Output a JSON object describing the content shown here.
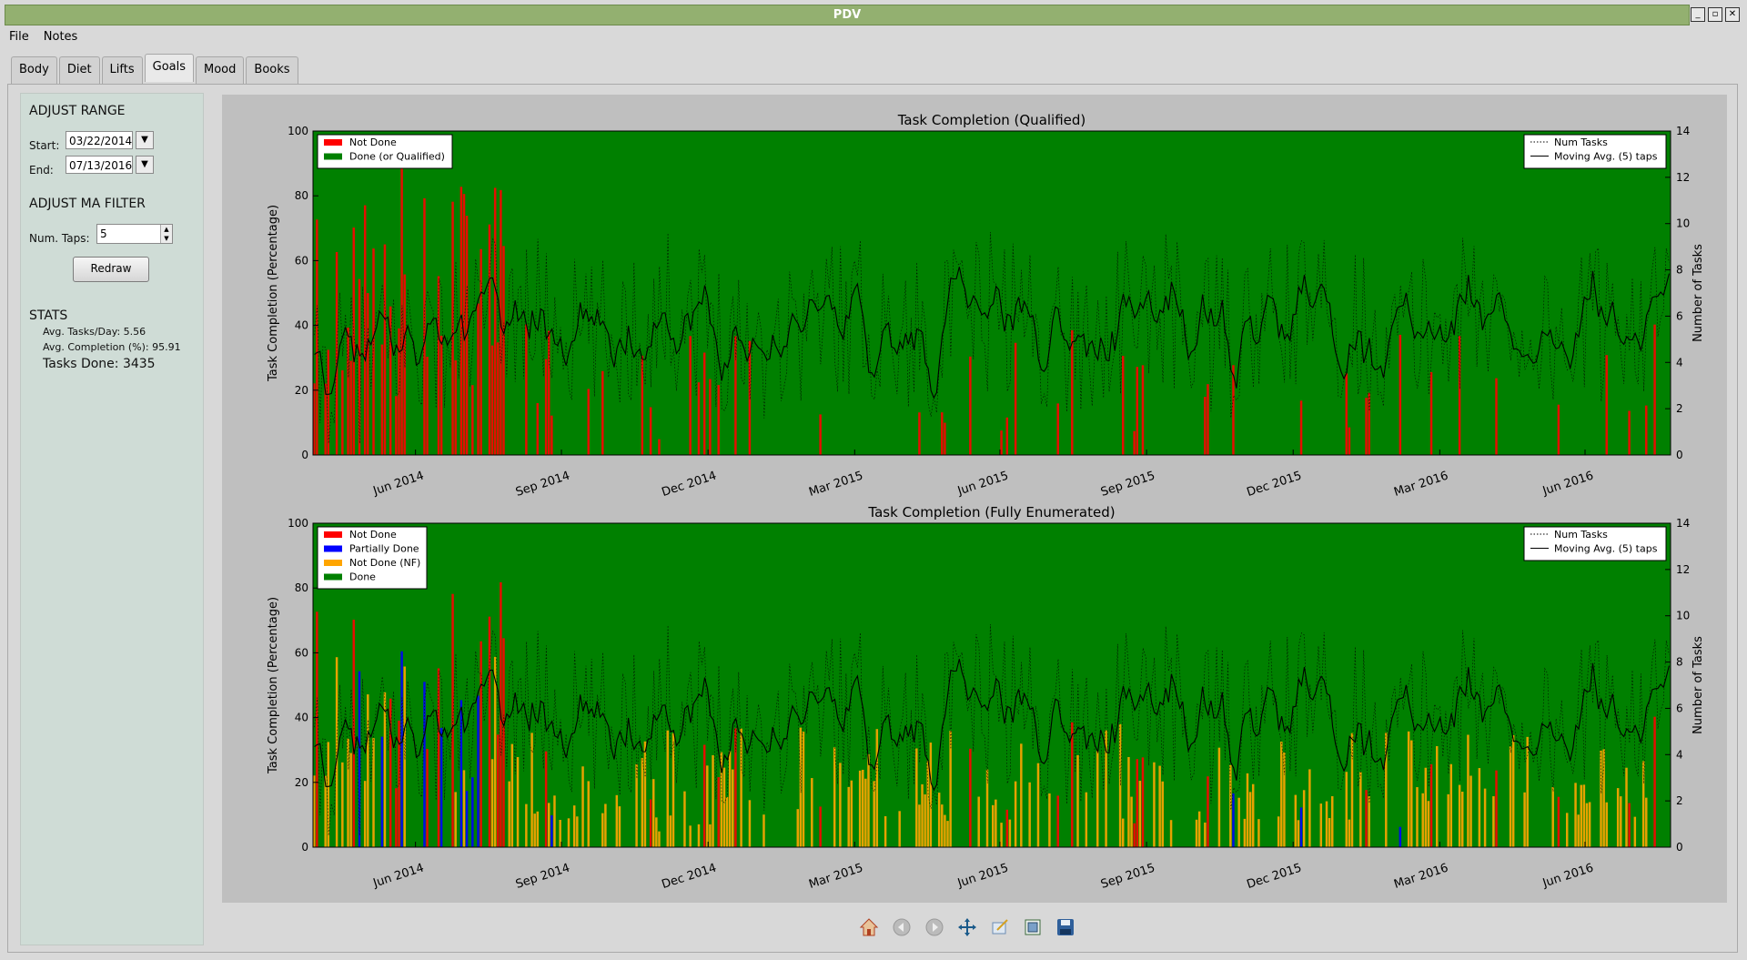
{
  "window": {
    "title": "PDV"
  },
  "menu": [
    "File",
    "Notes"
  ],
  "tabs": [
    "Body",
    "Diet",
    "Lifts",
    "Goals",
    "Mood",
    "Books"
  ],
  "active_tab": "Goals",
  "sidebar": {
    "range_heading": "ADJUST RANGE",
    "start_label": "Start:",
    "start_value": "03/22/2014",
    "end_label": "End:",
    "end_value": "07/13/2016",
    "ma_heading": "ADJUST MA FILTER",
    "taps_label": "Num. Taps:",
    "taps_value": "5",
    "redraw_label": "Redraw",
    "stats_heading": "STATS",
    "avg_tasks": "Avg. Tasks/Day: 5.56",
    "avg_completion": "Avg. Completion (%): 95.91",
    "tasks_done": "Tasks Done: 3435"
  },
  "toolbar_icons": [
    "home-icon",
    "back-icon",
    "forward-icon",
    "pan-icon",
    "zoom-icon",
    "subplots-icon",
    "save-icon"
  ],
  "chart_data": [
    {
      "type": "bar",
      "title": "Task Completion (Qualified)",
      "ylabel": "Task Completion (Percentage)",
      "y2label": "Number of Tasks",
      "ylim": [
        0,
        100
      ],
      "y2lim": [
        0,
        14
      ],
      "yticks": [
        "0",
        "20",
        "40",
        "60",
        "80",
        "100"
      ],
      "y2ticks": [
        "0",
        "2",
        "4",
        "6",
        "8",
        "10",
        "12",
        "14"
      ],
      "xticks": [
        "Jun 2014",
        "Sep 2014",
        "Dec 2014",
        "Mar 2015",
        "Jun 2015",
        "Sep 2015",
        "Dec 2015",
        "Mar 2016",
        "Jun 2016"
      ],
      "legend_left": [
        {
          "label": "Not Done",
          "color": "#ff0000"
        },
        {
          "label": "Done (or Qualified)",
          "color": "#008000"
        }
      ],
      "legend_right": [
        {
          "label": "Num Tasks",
          "style": "dotted"
        },
        {
          "label": "Moving Avg. (5) taps",
          "style": "solid"
        }
      ],
      "background_color": "#008000",
      "series": [
        "Not Done",
        "Done (or Qualified)",
        "Num Tasks",
        "Moving Avg. (5) taps"
      ]
    },
    {
      "type": "bar",
      "title": "Task Completion (Fully Enumerated)",
      "ylabel": "Task Completion (Percentage)",
      "y2label": "Number of Tasks",
      "ylim": [
        0,
        100
      ],
      "y2lim": [
        0,
        14
      ],
      "yticks": [
        "0",
        "20",
        "40",
        "60",
        "80",
        "100"
      ],
      "y2ticks": [
        "0",
        "2",
        "4",
        "6",
        "8",
        "10",
        "12",
        "14"
      ],
      "xticks": [
        "Jun 2014",
        "Sep 2014",
        "Dec 2014",
        "Mar 2015",
        "Jun 2015",
        "Sep 2015",
        "Dec 2015",
        "Mar 2016",
        "Jun 2016"
      ],
      "legend_left": [
        {
          "label": "Not Done",
          "color": "#ff0000"
        },
        {
          "label": "Partially Done",
          "color": "#0000ff"
        },
        {
          "label": "Not Done (NF)",
          "color": "#ffa500"
        },
        {
          "label": "Done",
          "color": "#008000"
        }
      ],
      "legend_right": [
        {
          "label": "Num Tasks",
          "style": "dotted"
        },
        {
          "label": "Moving Avg. (5) taps",
          "style": "solid"
        }
      ],
      "background_color": "#008000",
      "series": [
        "Not Done",
        "Partially Done",
        "Not Done (NF)",
        "Done",
        "Num Tasks",
        "Moving Avg. (5) taps"
      ]
    }
  ]
}
